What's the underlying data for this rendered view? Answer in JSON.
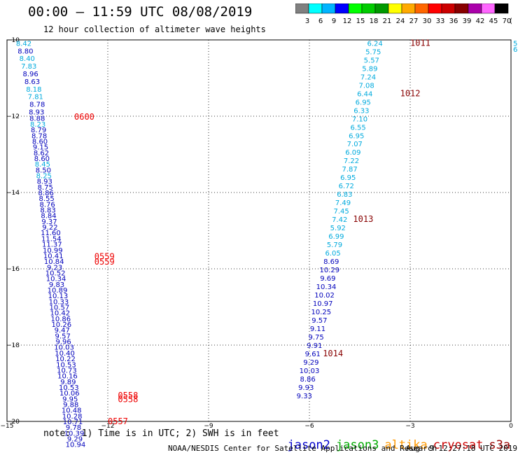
{
  "title": "00:00 – 11:59 UTC 08/08/2019",
  "subtitle": "12 hour collection of altimeter wave heights",
  "note": "note:  1) Time is in UTC; 2) SWH is in feet",
  "credit": "NOAA/NESDIS Center for Satellite Applications and Research",
  "timestamp": "Aug  9 12:27:18 UTC 2019",
  "legend": [
    {
      "name": "jason2",
      "color": "#0000cc"
    },
    {
      "name": "jason3",
      "color": "#00aa00"
    },
    {
      "name": "altika",
      "color": "#ff9900"
    },
    {
      "name": "cryosat",
      "color": "#cc0000"
    },
    {
      "name": "s3a",
      "color": "#990000"
    }
  ],
  "colorbar": {
    "unit": "(ft)",
    "colors": [
      "#808080",
      "#00ffff",
      "#00b4ff",
      "#0000ff",
      "#00ff00",
      "#00cc00",
      "#009900",
      "#ffff00",
      "#ffaa00",
      "#ff6600",
      "#ff0000",
      "#cc0000",
      "#880000",
      "#aa00aa",
      "#ff66ff",
      "#000000"
    ],
    "labels": [
      "3",
      "6",
      "9",
      "12",
      "15",
      "18",
      "21",
      "24",
      "27",
      "30",
      "33",
      "36",
      "39",
      "42",
      "45",
      "70"
    ]
  },
  "chart_data": {
    "type": "scatter",
    "xlim": [
      -15,
      0
    ],
    "ylim": [
      -20,
      -10
    ],
    "xticks": [
      -15,
      -12,
      -9,
      -6,
      -3,
      0
    ],
    "yticks": [
      -10,
      -12,
      -14,
      -16,
      -18,
      -20
    ],
    "xtick_labels": [
      "−15",
      "−12",
      "−9",
      "−6",
      "−3",
      "0"
    ],
    "ytick_labels": [
      "−10",
      "−12",
      "−14",
      "−16",
      "−18",
      "−20"
    ],
    "grid": true,
    "series": [
      {
        "color_light": "#00aadd",
        "color_dark": "#0000bb",
        "points": [
          [
            -14.5,
            -10.08,
            "8.42"
          ],
          [
            -14.45,
            -10.28,
            "8.80"
          ],
          [
            -14.4,
            -10.48,
            "8.40"
          ],
          [
            -14.35,
            -10.68,
            "7.83"
          ],
          [
            -14.3,
            -10.88,
            "8.96"
          ],
          [
            -14.25,
            -11.08,
            "8.63"
          ],
          [
            -14.2,
            -11.28,
            "8.18"
          ],
          [
            -14.15,
            -11.48,
            "7.81"
          ],
          [
            -14.1,
            -11.68,
            "8.78"
          ],
          [
            -14.12,
            -11.88,
            "8.93"
          ],
          [
            -14.1,
            -12.05,
            "8.88"
          ],
          [
            -14.08,
            -12.2,
            "8.23"
          ],
          [
            -14.06,
            -12.35,
            "8.79"
          ],
          [
            -14.04,
            -12.5,
            "8.78"
          ],
          [
            -14.02,
            -12.65,
            "8.60"
          ],
          [
            -14.0,
            -12.8,
            "9.15"
          ],
          [
            -13.98,
            -12.95,
            "8.62"
          ],
          [
            -13.96,
            -13.1,
            "8.60"
          ],
          [
            -13.94,
            -13.25,
            "8.45"
          ],
          [
            -13.92,
            -13.4,
            "8.50"
          ],
          [
            -13.9,
            -13.55,
            "8.25"
          ],
          [
            -13.88,
            -13.7,
            "8.93"
          ],
          [
            -13.86,
            -13.85,
            "8.75"
          ],
          [
            -13.84,
            -14.0,
            "8.86"
          ],
          [
            -13.82,
            -14.15,
            "8.55"
          ],
          [
            -13.8,
            -14.3,
            "8.76"
          ],
          [
            -13.78,
            -14.45,
            "8.83"
          ],
          [
            -13.76,
            -14.6,
            "8.84"
          ],
          [
            -13.74,
            -14.75,
            "9.37"
          ],
          [
            -13.72,
            -14.9,
            "9.22"
          ],
          [
            -13.7,
            -15.05,
            "11.60"
          ],
          [
            -13.68,
            -15.2,
            "11.54"
          ],
          [
            -13.66,
            -15.35,
            "11.37"
          ],
          [
            -13.64,
            -15.5,
            "10.99"
          ],
          [
            -13.62,
            -15.65,
            "10.41"
          ],
          [
            -13.6,
            -15.8,
            "10.84"
          ],
          [
            -13.58,
            -15.95,
            "9.23"
          ],
          [
            -13.56,
            -16.1,
            "10.52"
          ],
          [
            -13.54,
            -16.25,
            "10.34"
          ],
          [
            -13.52,
            -16.4,
            "9.83"
          ],
          [
            -13.5,
            -16.55,
            "10.89"
          ],
          [
            -13.48,
            -16.7,
            "10.13"
          ],
          [
            -13.46,
            -16.85,
            "10.33"
          ],
          [
            -13.44,
            -17.0,
            "10.57"
          ],
          [
            -13.42,
            -17.15,
            "10.42"
          ],
          [
            -13.4,
            -17.3,
            "10.86"
          ],
          [
            -13.38,
            -17.45,
            "10.26"
          ],
          [
            -13.36,
            -17.6,
            "9.47"
          ],
          [
            -13.34,
            -17.75,
            "9.57"
          ],
          [
            -13.32,
            -17.9,
            "9.96"
          ],
          [
            -13.3,
            -18.05,
            "10.03"
          ],
          [
            -13.28,
            -18.2,
            "10.40"
          ],
          [
            -13.26,
            -18.35,
            "10.22"
          ],
          [
            -13.24,
            -18.5,
            "10.53"
          ],
          [
            -13.22,
            -18.65,
            "10.73"
          ],
          [
            -13.2,
            -18.8,
            "10.16"
          ],
          [
            -13.18,
            -18.95,
            "9.89"
          ],
          [
            -13.16,
            -19.1,
            "10.53"
          ],
          [
            -13.14,
            -19.25,
            "10.06"
          ],
          [
            -13.12,
            -19.4,
            "9.95"
          ],
          [
            -13.1,
            -19.55,
            "9.88"
          ],
          [
            -13.08,
            -19.7,
            "10.48"
          ],
          [
            -13.06,
            -19.85,
            "10.28"
          ],
          [
            -13.04,
            -20.0,
            "10.71"
          ],
          [
            -13.02,
            -20.15,
            "9.78"
          ],
          [
            -13.0,
            -20.3,
            "10.39"
          ],
          [
            -12.98,
            -20.45,
            "9.29"
          ],
          [
            -12.96,
            -20.6,
            "10.94"
          ]
        ]
      },
      {
        "color_light": "#00aadd",
        "color_dark": "#0000bb",
        "points": [
          [
            -4.05,
            -10.08,
            "6.24"
          ],
          [
            -4.1,
            -10.3,
            "5.75"
          ],
          [
            -4.15,
            -10.52,
            "5.57"
          ],
          [
            -4.2,
            -10.74,
            "5.89"
          ],
          [
            -4.25,
            -10.96,
            "7.24"
          ],
          [
            -4.3,
            -11.18,
            "7.08"
          ],
          [
            -4.35,
            -11.4,
            "6.44"
          ],
          [
            -4.4,
            -11.62,
            "6.95"
          ],
          [
            -4.45,
            -11.84,
            "6.33"
          ],
          [
            -4.5,
            -12.06,
            "7.10"
          ],
          [
            -4.55,
            -12.28,
            "6.55"
          ],
          [
            -4.6,
            -12.5,
            "6.95"
          ],
          [
            -4.65,
            -12.72,
            "7.07"
          ],
          [
            -4.7,
            -12.94,
            "6.09"
          ],
          [
            -4.75,
            -13.16,
            "7.22"
          ],
          [
            -4.8,
            -13.38,
            "7.87"
          ],
          [
            -4.85,
            -13.6,
            "6.95"
          ],
          [
            -4.9,
            -13.82,
            "6.72"
          ],
          [
            -4.95,
            -14.04,
            "6.83"
          ],
          [
            -5.0,
            -14.26,
            "7.49"
          ],
          [
            -5.05,
            -14.48,
            "7.45"
          ],
          [
            -5.1,
            -14.7,
            "7.42"
          ],
          [
            -5.15,
            -14.92,
            "5.92"
          ],
          [
            -5.2,
            -15.14,
            "6.99"
          ],
          [
            -5.25,
            -15.36,
            "5.79"
          ],
          [
            -5.3,
            -15.58,
            "6.05"
          ],
          [
            -5.35,
            -15.8,
            "8.69"
          ],
          [
            -5.4,
            -16.02,
            "10.29"
          ],
          [
            -5.45,
            -16.24,
            "9.69"
          ],
          [
            -5.5,
            -16.46,
            "10.34"
          ],
          [
            -5.55,
            -16.68,
            "10.02"
          ],
          [
            -5.6,
            -16.9,
            "10.97"
          ],
          [
            -5.65,
            -17.12,
            "10.25"
          ],
          [
            -5.7,
            -17.34,
            "9.57"
          ],
          [
            -5.75,
            -17.56,
            "9.11"
          ],
          [
            -5.8,
            -17.78,
            "9.75"
          ],
          [
            -5.85,
            -18.0,
            "9.91"
          ],
          [
            -5.9,
            -18.22,
            "9.61"
          ],
          [
            -5.95,
            -18.44,
            "9.29"
          ],
          [
            -6.0,
            -18.66,
            "10.03"
          ],
          [
            -6.05,
            -18.88,
            "8.86"
          ],
          [
            -6.1,
            -19.1,
            "9.93"
          ],
          [
            -6.15,
            -19.32,
            "9.33"
          ]
        ]
      }
    ],
    "time_labels": [
      {
        "x": -13.0,
        "y": -12.02,
        "text": "0600",
        "color": "#ee0000"
      },
      {
        "x": -12.4,
        "y": -15.68,
        "text": "0559",
        "color": "#ee0000"
      },
      {
        "x": -12.4,
        "y": -15.82,
        "text": "0559",
        "color": "#ee0000"
      },
      {
        "x": -11.7,
        "y": -19.32,
        "text": "0558",
        "color": "#ee0000"
      },
      {
        "x": -11.7,
        "y": -19.42,
        "text": "0558",
        "color": "#ee0000"
      },
      {
        "x": -12.0,
        "y": -20.0,
        "text": "0557",
        "color": "#ee0000"
      },
      {
        "x": -3.0,
        "y": -10.08,
        "text": "1011",
        "color": "#880000"
      },
      {
        "x": -3.3,
        "y": -11.4,
        "text": "1012",
        "color": "#880000"
      },
      {
        "x": -4.7,
        "y": -14.7,
        "text": "1013",
        "color": "#880000"
      },
      {
        "x": -5.6,
        "y": -18.22,
        "text": "1014",
        "color": "#880000"
      }
    ],
    "right_edge_labels": [
      {
        "y": -10.08,
        "text": "5"
      },
      {
        "y": -10.24,
        "text": "6"
      }
    ]
  }
}
